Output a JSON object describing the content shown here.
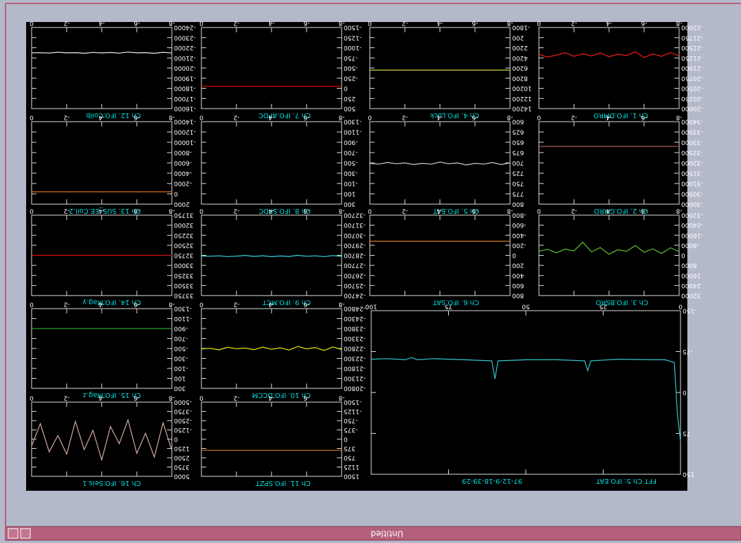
{
  "window": {
    "title": "Untitled"
  },
  "chart_data": [
    {
      "type": "line",
      "title": "Ch 1. IFO.DMRO",
      "color": "#ff1a1a",
      "x": [
        -8,
        -7.5,
        -7,
        -6.5,
        -6,
        -5.5,
        -5,
        -4.5,
        -4,
        -3.5,
        -3,
        -2.5,
        -2,
        -1.5,
        -1,
        -0.5,
        0
      ],
      "values": [
        -21300,
        -21380,
        -21290,
        -21350,
        -21260,
        -21400,
        -21310,
        -21340,
        -21280,
        -21370,
        -21300,
        -21350,
        -21290,
        -21380,
        -21320,
        -21270,
        -21340
      ],
      "xlim": [
        -8,
        0
      ],
      "xticks": [
        -8,
        -6,
        -4,
        -2,
        0
      ],
      "ylim": [
        -22000,
        -20000
      ],
      "yticks": [
        -22000,
        -21750,
        -21500,
        -21250,
        -21000,
        -20750,
        -20500,
        -20250,
        -20000
      ]
    },
    {
      "type": "line",
      "title": "Ch 2. IFO.CMRO",
      "color": "#a0604f",
      "x": [
        -8,
        -7.5,
        -7,
        -6.5,
        -6,
        -5.5,
        -5,
        -4.5,
        -4,
        -3.5,
        -3,
        -2.5,
        -2,
        -1.5,
        -1,
        -0.5,
        0
      ],
      "values": [
        -32800,
        -32800,
        -32800,
        -32800,
        -32800,
        -32800,
        -32800,
        -32800,
        -32800,
        -32800,
        -32800,
        -32800,
        -32800,
        -32800,
        -32800,
        -32800,
        -32800
      ],
      "xlim": [
        -8,
        0
      ],
      "xticks": [
        -8,
        -6,
        -4,
        -2,
        0
      ],
      "ylim": [
        -34000,
        -30000
      ],
      "yticks": [
        -34000,
        -33500,
        -33000,
        -32500,
        -32000,
        -31500,
        -31000,
        -30500,
        -30000
      ]
    },
    {
      "type": "line",
      "title": "Ch 3. IFO.BSRO",
      "color": "#62c232",
      "x": [
        -8,
        -7.5,
        -7,
        -6.5,
        -6,
        -5.5,
        -5,
        -4.5,
        -4,
        -3.5,
        -3,
        -2.5,
        -2,
        -1.5,
        -1,
        -0.5,
        0
      ],
      "values": [
        -3000,
        -6000,
        -1500,
        -5200,
        -2500,
        -7800,
        -3200,
        -4500,
        -900,
        -6200,
        -2800,
        -10500,
        -3500,
        -5000,
        -2000,
        -4800,
        -3300
      ],
      "xlim": [
        -8,
        0
      ],
      "xticks": [
        -8,
        -6,
        -4,
        -2,
        0
      ],
      "ylim": [
        -32000,
        32000
      ],
      "yticks": [
        -32000,
        -24000,
        -16000,
        -8000,
        0,
        8000,
        16000,
        24000,
        32000
      ]
    },
    {
      "type": "line",
      "title": "Ch 4. IFO.Lock",
      "color": "#d8d850",
      "x": [
        -8,
        -7.5,
        -7,
        -6.5,
        -6,
        -5.5,
        -5,
        -4.5,
        -4,
        -3.5,
        -3,
        -2.5,
        -2,
        -1.5,
        -1,
        -0.5,
        0
      ],
      "values": [
        6600,
        6600,
        6600,
        6600,
        6600,
        6600,
        6600,
        6600,
        6600,
        6600,
        6600,
        6600,
        6600,
        6600,
        6600,
        6600,
        6600
      ],
      "xlim": [
        -8,
        0
      ],
      "xticks": [
        -8,
        -6,
        -4,
        -2,
        0
      ],
      "ylim": [
        -1800,
        14200
      ],
      "yticks": [
        -1800,
        200,
        2200,
        4200,
        6200,
        8200,
        10200,
        12200,
        14200
      ]
    },
    {
      "type": "line",
      "title": "Ch 5. IFO.EAT",
      "color": "#d0d0d0",
      "x": [
        -8,
        -7.5,
        -7,
        -6.5,
        -6,
        -5.5,
        -5,
        -4.5,
        -4,
        -3.5,
        -3,
        -2.5,
        -2,
        -1.5,
        -1,
        -0.5,
        0
      ],
      "values": [
        700,
        704,
        699,
        703,
        701,
        705,
        700,
        702,
        698,
        703,
        701,
        704,
        700,
        702,
        699,
        703,
        701
      ],
      "xlim": [
        -8,
        0
      ],
      "xticks": [
        -8,
        -6,
        -4,
        -2,
        0
      ],
      "ylim": [
        600,
        800
      ],
      "yticks": [
        600,
        625,
        650,
        675,
        700,
        725,
        750,
        775,
        800
      ]
    },
    {
      "type": "line",
      "title": "Ch 6. IFO.SAT",
      "color": "#e08020",
      "x": [
        -8,
        -7.5,
        -7,
        -6.5,
        -6,
        -5.5,
        -5,
        -4.5,
        -4,
        -3.5,
        -3,
        -2.5,
        -2,
        -1.5,
        -1,
        -0.5,
        0
      ],
      "values": [
        -280,
        -280,
        -280,
        -280,
        -280,
        -280,
        -280,
        -280,
        -280,
        -280,
        -280,
        -280,
        -280,
        -280,
        -280,
        -280,
        -280
      ],
      "xlim": [
        -8,
        0
      ],
      "xticks": [
        -8,
        -6,
        -4,
        -2,
        0
      ],
      "ylim": [
        -800,
        800
      ],
      "yticks": [
        -800,
        -600,
        -400,
        -200,
        0,
        200,
        400,
        600,
        800
      ]
    },
    {
      "type": "line",
      "title": "Ch 7. IFO.APDC",
      "color": "#e00000",
      "x": [
        -8,
        -7.5,
        -7,
        -6.5,
        -6,
        -5.5,
        -5,
        -4.5,
        -4,
        -3.5,
        -3,
        -2.5,
        -2,
        -1.5,
        -1,
        -0.5,
        0
      ],
      "values": [
        -50,
        -50,
        -50,
        -50,
        -50,
        -50,
        -50,
        -50,
        -50,
        -50,
        -50,
        -50,
        -50,
        -50,
        -50,
        -50,
        -50
      ],
      "xlim": [
        -8,
        0
      ],
      "xticks": [
        -8,
        -6,
        -4,
        -2,
        0
      ],
      "ylim": [
        -1500,
        500
      ],
      "yticks": [
        -1500,
        -1250,
        -1000,
        -750,
        -500,
        -250,
        0,
        250,
        500
      ]
    },
    {
      "type": "line",
      "title": "Ch 8. IFO.SPDC",
      "xlim": [
        -8,
        0
      ],
      "xticks": [
        -8,
        -6,
        -4,
        -2,
        0
      ],
      "ylim": [
        -1300,
        300
      ],
      "yticks": [
        -1300,
        -1100,
        -900,
        -700,
        -500,
        -300,
        -100,
        100,
        300
      ]
    },
    {
      "type": "line",
      "title": "Ch 9. IFO.MCT",
      "color": "#30d8e8",
      "x": [
        -8,
        -7.5,
        -7,
        -6.5,
        -6,
        -5.5,
        -5,
        -4.5,
        -4,
        -3.5,
        -3,
        -2.5,
        -2,
        -1.5,
        -1,
        -0.5,
        0
      ],
      "values": [
        -28600,
        -28680,
        -28580,
        -28650,
        -28610,
        -28700,
        -28590,
        -28640,
        -28570,
        -28660,
        -28600,
        -28690,
        -28620,
        -28580,
        -28650,
        -28610,
        -28630
      ],
      "xlim": [
        -8,
        0
      ],
      "xticks": [
        -8,
        -6,
        -4,
        -2,
        0
      ],
      "ylim": [
        -32700,
        -24700
      ],
      "yticks": [
        -32700,
        -31700,
        -30700,
        -29700,
        -28700,
        -27700,
        -26700,
        -25700,
        -24700
      ]
    },
    {
      "type": "line",
      "title": "Ch 10. IFO.DCCM",
      "color": "#f0f000",
      "x": [
        -8,
        -7.5,
        -7,
        -6.5,
        -6,
        -5.5,
        -5,
        -4.5,
        -4,
        -3.5,
        -3,
        -2.5,
        -2,
        -1.5,
        -1,
        -0.5,
        0
      ],
      "values": [
        -22750,
        -22880,
        -22700,
        -22850,
        -22780,
        -22900,
        -22720,
        -22830,
        -22760,
        -22870,
        -22740,
        -22820,
        -22790,
        -22860,
        -22730,
        -22810,
        -22780
      ],
      "xlim": [
        -8,
        0
      ],
      "xticks": [
        -8,
        -6,
        -4,
        -2,
        0
      ],
      "ylim": [
        -24800,
        -20800
      ],
      "yticks": [
        -24800,
        -24300,
        -23800,
        -23300,
        -22800,
        -22300,
        -21800,
        -21300,
        -20800
      ]
    },
    {
      "type": "line",
      "title": "Ch 11. IFO.SPZT",
      "color": "#e08020",
      "x": [
        -8,
        -7.5,
        -7,
        -6.5,
        -6,
        -5.5,
        -5,
        -4.5,
        -4,
        -3.5,
        -3,
        -2.5,
        -2,
        -1.5,
        -1,
        -0.5,
        0
      ],
      "values": [
        450,
        450,
        450,
        450,
        450,
        450,
        450,
        450,
        450,
        450,
        450,
        450,
        450,
        450,
        450,
        450,
        450
      ],
      "xlim": [
        -8,
        0
      ],
      "xticks": [
        -8,
        -6,
        -4,
        -2,
        0
      ],
      "ylim": [
        -1500,
        1500
      ],
      "yticks": [
        -1500,
        -1125,
        -750,
        -375,
        0,
        375,
        750,
        1125,
        1500
      ]
    },
    {
      "type": "line",
      "title": "Ch 12. IFO.Coilb",
      "color": "#f0f0f0",
      "x": [
        -8,
        -7.5,
        -7,
        -6.5,
        -6,
        -5.5,
        -5,
        -4.5,
        -4,
        -3.5,
        -3,
        -2.5,
        -2,
        -1.5,
        -1,
        -0.5,
        0
      ],
      "values": [
        -21480,
        -21550,
        -21460,
        -21520,
        -21500,
        -21570,
        -21470,
        -21530,
        -21490,
        -21540,
        -21460,
        -21520,
        -21500,
        -21560,
        -21480,
        -21510,
        -21500
      ],
      "xlim": [
        -8,
        0
      ],
      "xticks": [
        -8,
        -6,
        -4,
        -2,
        0
      ],
      "ylim": [
        -24000,
        -16000
      ],
      "yticks": [
        -24000,
        -23000,
        -22000,
        -21000,
        -20000,
        -19000,
        -18000,
        -17000,
        -16000
      ]
    },
    {
      "type": "line",
      "title": "Ch 13. SUS_EE.Coil.2",
      "color": "#e07020",
      "x": [
        -8,
        -7.5,
        -7,
        -6.5,
        -6,
        -5.5,
        -5,
        -4.5,
        -4,
        -3.5,
        -3,
        -2.5,
        -2,
        -1.5,
        -1,
        -0.5,
        0
      ],
      "values": [
        -400,
        -400,
        -400,
        -400,
        -400,
        -400,
        -400,
        -400,
        -400,
        -400,
        -400,
        -400,
        -400,
        -400,
        -400,
        -400,
        -400
      ],
      "xlim": [
        -8,
        0
      ],
      "xticks": [
        -8,
        -6,
        -4,
        -2,
        0
      ],
      "ylim": [
        -14000,
        2000
      ],
      "yticks": [
        -14000,
        -12000,
        -10000,
        -8000,
        -6000,
        -4000,
        -2000,
        0,
        2000
      ]
    },
    {
      "type": "line",
      "title": "Ch 14. IFO.Mag.y",
      "color": "#d01010",
      "x": [
        -8,
        -7.5,
        -7,
        -6.5,
        -6,
        -5.5,
        -5,
        -4.5,
        -4,
        -3.5,
        -3,
        -2.5,
        -2,
        -1.5,
        -1,
        -0.5,
        0
      ],
      "values": [
        32750,
        32750,
        32750,
        32750,
        32750,
        32750,
        32750,
        32750,
        32750,
        32750,
        32750,
        32750,
        32750,
        32750,
        32750,
        32750,
        32750
      ],
      "xlim": [
        -8,
        0
      ],
      "xticks": [
        -8,
        -6,
        -4,
        -2,
        0
      ],
      "ylim": [
        31750,
        33750
      ],
      "yticks": [
        31750,
        32000,
        32250,
        32500,
        32750,
        33000,
        33250,
        33500,
        33750
      ]
    },
    {
      "type": "line",
      "title": "Ch 15. IFO.Mag.z",
      "color": "#30a030",
      "x": [
        -8,
        -7.5,
        -7,
        -6.5,
        -6,
        -5.5,
        -5,
        -4.5,
        -4,
        -3.5,
        -3,
        -2.5,
        -2,
        -1.5,
        -1,
        -0.5,
        0
      ],
      "values": [
        -900,
        -900,
        -900,
        -900,
        -900,
        -900,
        -900,
        -900,
        -900,
        -900,
        -900,
        -900,
        -900,
        -900,
        -900,
        -900,
        -900
      ],
      "xlim": [
        -8,
        0
      ],
      "xticks": [
        -8,
        -6,
        -4,
        -2,
        0
      ],
      "ylim": [
        -1300,
        300
      ],
      "yticks": [
        -1300,
        -1100,
        -900,
        -700,
        -500,
        -300,
        -100,
        100,
        300
      ]
    },
    {
      "type": "line",
      "title": "Ch 16. IFO.Seis.1",
      "color": "#d8a8a0",
      "x": [
        -8,
        -7.5,
        -7,
        -6.5,
        -6,
        -5.5,
        -5,
        -4.5,
        -4,
        -3.5,
        -3,
        -2.5,
        -2,
        -1.5,
        -1,
        -0.5,
        0
      ],
      "values": [
        1500,
        -2200,
        2400,
        -800,
        1900,
        -2600,
        600,
        -1700,
        2800,
        -1200,
        1400,
        -2400,
        2000,
        -500,
        1700,
        -2100,
        900
      ],
      "xlim": [
        -8,
        0
      ],
      "xticks": [
        -8,
        -6,
        -4,
        -2,
        0
      ],
      "ylim": [
        -5000,
        5000
      ],
      "yticks": [
        -5000,
        -3750,
        -2500,
        -1250,
        0,
        1250,
        2500,
        3750,
        5000
      ]
    },
    {
      "type": "line",
      "title": "FFT Ch 5: IFO.EAT",
      "subtitle": "97-12-9-18-39-29",
      "color": "#30c8d0",
      "x": [
        0,
        1,
        2,
        5,
        10,
        20,
        29,
        30,
        31,
        40,
        50,
        59,
        60,
        61,
        70,
        80,
        85,
        87,
        89,
        95,
        100
      ],
      "values": [
        90,
        40,
        -55,
        -60,
        -60,
        -61,
        -58,
        -40,
        -58,
        -60,
        -60,
        -58,
        -25,
        -58,
        -60,
        -62,
        -60,
        -64,
        -60,
        -62,
        -61
      ],
      "xlim": [
        0,
        100
      ],
      "xticks": [
        0,
        25,
        50,
        75,
        100
      ],
      "ylim": [
        -150,
        150
      ],
      "yticks": [
        -150,
        -75,
        0,
        75,
        150
      ]
    }
  ]
}
